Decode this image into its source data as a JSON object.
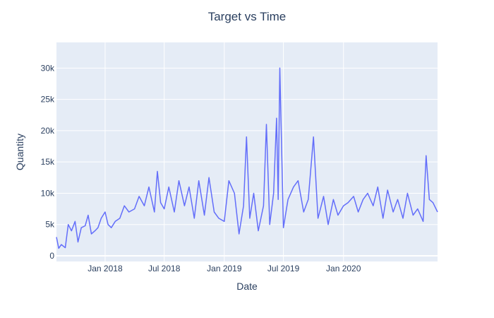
{
  "chart_data": {
    "type": "line",
    "title": "Target vs Time",
    "xlabel": "Date",
    "ylabel": "Quantity",
    "x_range": [
      "2017-08-05",
      "2020-10-15"
    ],
    "ylim": [
      -900,
      34100
    ],
    "x_ticks": [
      {
        "date": "2018-01-01",
        "label": "Jan 2018"
      },
      {
        "date": "2018-07-01",
        "label": "Jul 2018"
      },
      {
        "date": "2019-01-01",
        "label": "Jan 2019"
      },
      {
        "date": "2019-07-01",
        "label": "Jul 2019"
      },
      {
        "date": "2020-01-01",
        "label": "Jan 2020"
      }
    ],
    "y_ticks": [
      {
        "value": 0,
        "label": "0"
      },
      {
        "value": 5000,
        "label": "5k"
      },
      {
        "value": 10000,
        "label": "10k"
      },
      {
        "value": 15000,
        "label": "15k"
      },
      {
        "value": 20000,
        "label": "20k"
      },
      {
        "value": 25000,
        "label": "25k"
      },
      {
        "value": 30000,
        "label": "30k"
      }
    ],
    "grid": true,
    "legend": "none",
    "colors": {
      "line": "#636efa",
      "plot_bg": "#e5ecf6",
      "grid": "#ffffff",
      "text": "#2a3f5f"
    },
    "series": [
      {
        "x": [
          "2017-08-05",
          "2017-08-12",
          "2017-08-20",
          "2017-09-01",
          "2017-09-10",
          "2017-09-20",
          "2017-10-01",
          "2017-10-10",
          "2017-10-20",
          "2017-11-01",
          "2017-11-10",
          "2017-11-20",
          "2017-12-01",
          "2017-12-10",
          "2017-12-20",
          "2018-01-01",
          "2018-01-10",
          "2018-01-20",
          "2018-02-01",
          "2018-02-15",
          "2018-03-01",
          "2018-03-15",
          "2018-04-01",
          "2018-04-15",
          "2018-05-01",
          "2018-05-15",
          "2018-06-01",
          "2018-06-10",
          "2018-06-20",
          "2018-07-01",
          "2018-07-15",
          "2018-08-01",
          "2018-08-15",
          "2018-09-01",
          "2018-09-15",
          "2018-10-01",
          "2018-10-15",
          "2018-11-01",
          "2018-11-15",
          "2018-12-01",
          "2018-12-15",
          "2019-01-01",
          "2019-01-15",
          "2019-02-01",
          "2019-02-15",
          "2019-03-01",
          "2019-03-10",
          "2019-03-20",
          "2019-04-01",
          "2019-04-15",
          "2019-05-01",
          "2019-05-10",
          "2019-05-20",
          "2019-06-01",
          "2019-06-10",
          "2019-06-15",
          "2019-06-20",
          "2019-07-01",
          "2019-07-15",
          "2019-08-01",
          "2019-08-15",
          "2019-09-01",
          "2019-09-15",
          "2019-10-01",
          "2019-10-15",
          "2019-11-01",
          "2019-11-15",
          "2019-12-01",
          "2019-12-15",
          "2020-01-01",
          "2020-01-15",
          "2020-02-01",
          "2020-02-15",
          "2020-03-01",
          "2020-03-15",
          "2020-04-01",
          "2020-04-15",
          "2020-05-01",
          "2020-05-15",
          "2020-06-01",
          "2020-06-15",
          "2020-07-01",
          "2020-07-15",
          "2020-08-01",
          "2020-08-15",
          "2020-09-01",
          "2020-09-10",
          "2020-09-20",
          "2020-10-01",
          "2020-10-15"
        ],
        "y": [
          3000,
          1200,
          1800,
          1300,
          5000,
          4000,
          5500,
          2200,
          4500,
          4800,
          6500,
          3500,
          4000,
          4500,
          6000,
          7000,
          5000,
          4500,
          5500,
          6000,
          8000,
          7000,
          7500,
          9500,
          8000,
          11000,
          7000,
          13500,
          8500,
          7500,
          11000,
          7000,
          12000,
          8000,
          11000,
          6000,
          12000,
          6500,
          12500,
          7000,
          6000,
          5500,
          12000,
          10000,
          3500,
          8000,
          19000,
          6000,
          10000,
          4000,
          8000,
          21000,
          5000,
          10000,
          22000,
          9000,
          30000,
          4500,
          9000,
          11000,
          12000,
          7000,
          9000,
          19000,
          6000,
          9500,
          5000,
          9000,
          6500,
          8000,
          8500,
          9500,
          7000,
          9000,
          10000,
          8000,
          11000,
          6000,
          10500,
          7000,
          9000,
          6000,
          10000,
          6500,
          7500,
          5500,
          16000,
          9000,
          8500,
          7000
        ]
      }
    ]
  }
}
